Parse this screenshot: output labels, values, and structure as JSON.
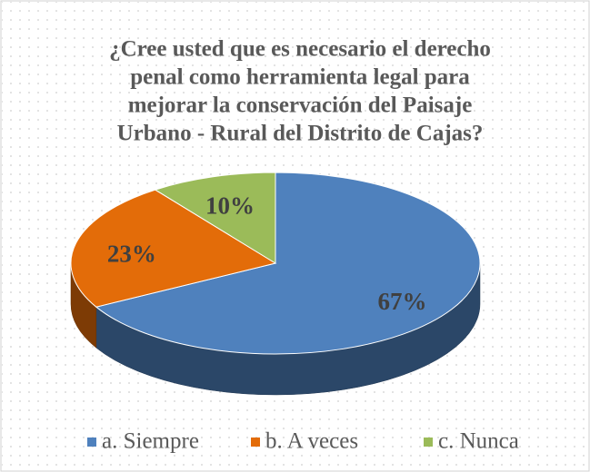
{
  "chart_data": {
    "type": "pie3d",
    "title": [
      "¿Cree usted que es necesario el derecho",
      "penal como herramienta legal para",
      "mejorar la conservación del Paisaje",
      "Urbano - Rural del Distrito de Cajas?"
    ],
    "categories": [
      "a. Siempre",
      "b. A veces",
      "c. Nunca"
    ],
    "values": [
      67,
      23,
      10
    ],
    "value_labels": [
      "67%",
      "23%",
      "10%"
    ],
    "colors": [
      "#4f81bd",
      "#e36c09",
      "#9bbb59"
    ],
    "legend": "bottom"
  }
}
